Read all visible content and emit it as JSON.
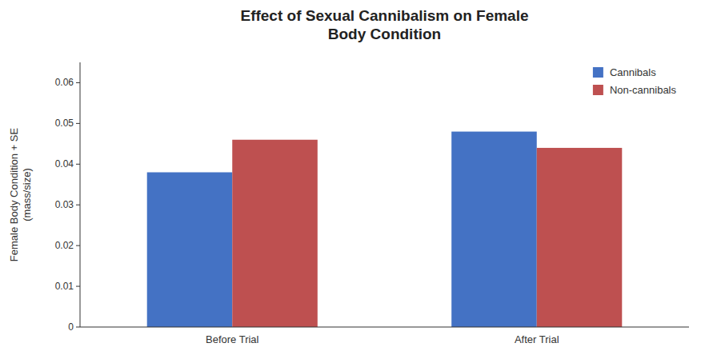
{
  "chart_data": {
    "type": "bar",
    "title": "Effect of Sexual Cannibalism on Female\nBody Condition",
    "y_label": "Female Body Condition + SE\n(mass/size)",
    "categories": [
      "Before Trial",
      "After Trial"
    ],
    "series": [
      {
        "name": "Cannibals",
        "color": "#4472C4",
        "values": [
          0.038,
          0.048
        ]
      },
      {
        "name": "Non-cannibals",
        "color": "#BE5050",
        "values": [
          0.046,
          0.044
        ]
      }
    ],
    "ylim": [
      0,
      0.065
    ],
    "yticks": [
      0,
      0.01,
      0.02,
      0.03,
      0.04,
      0.05,
      0.06
    ],
    "grid": false,
    "legend": "upper right"
  }
}
